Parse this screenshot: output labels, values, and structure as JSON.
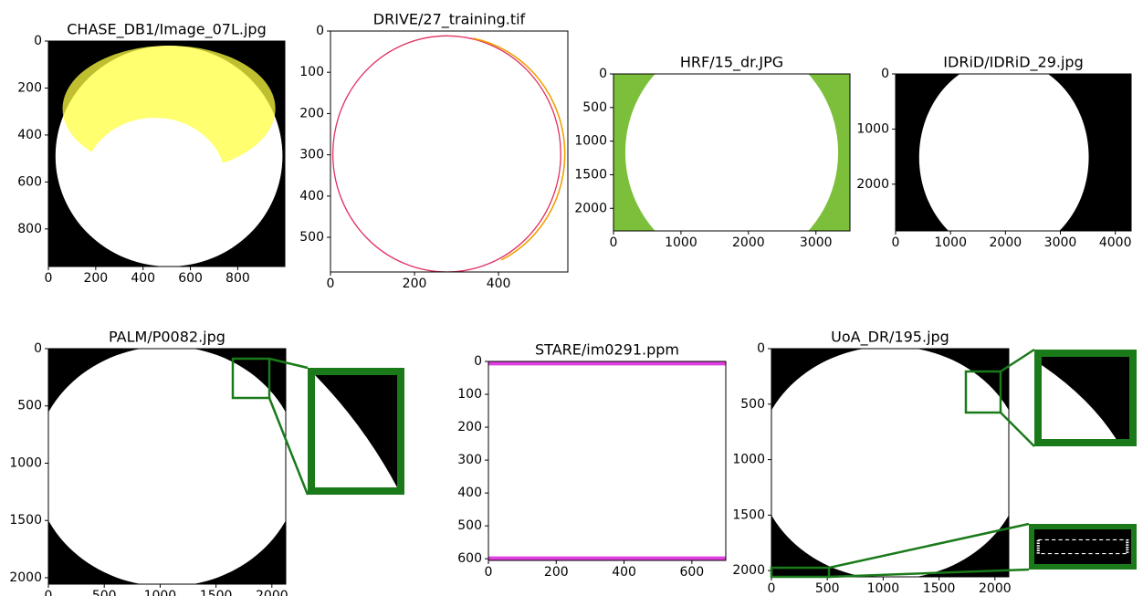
{
  "chart_data": [
    {
      "type": "image",
      "title": "CHASE_DB1/Image_07L.jpg",
      "xlim": [
        0,
        999
      ],
      "ylim": [
        960,
        0
      ],
      "xticks": [
        0,
        200,
        400,
        600,
        800
      ],
      "yticks": [
        0,
        200,
        400,
        600,
        800
      ]
    },
    {
      "type": "image",
      "title": "DRIVE/27_training.tif",
      "xlim": [
        0,
        565
      ],
      "ylim": [
        584,
        0
      ],
      "xticks": [
        0,
        200,
        400
      ],
      "yticks": [
        0,
        100,
        200,
        300,
        400,
        500
      ]
    },
    {
      "type": "image",
      "title": "HRF/15_dr.JPG",
      "xlim": [
        0,
        3504
      ],
      "ylim": [
        2336,
        0
      ],
      "xticks": [
        0,
        1000,
        2000,
        3000
      ],
      "yticks": [
        0,
        500,
        1000,
        1500,
        2000
      ]
    },
    {
      "type": "image",
      "title": "IDRiD/IDRiD_29.jpg",
      "xlim": [
        0,
        4288
      ],
      "ylim": [
        2848,
        0
      ],
      "xticks": [
        0,
        1000,
        2000,
        3000,
        4000
      ],
      "yticks": [
        0,
        1000,
        2000
      ]
    },
    {
      "type": "image",
      "title": "PALM/P0082.jpg",
      "xlim": [
        0,
        2124
      ],
      "ylim": [
        2056,
        0
      ],
      "xticks": [
        0,
        500,
        1000,
        1500,
        2000
      ],
      "yticks": [
        0,
        500,
        1000,
        1500,
        2000
      ]
    },
    {
      "type": "image",
      "title": "STARE/im0291.ppm",
      "xlim": [
        0,
        700
      ],
      "ylim": [
        605,
        0
      ],
      "xticks": [
        0,
        200,
        400,
        600
      ],
      "yticks": [
        0,
        100,
        200,
        300,
        400,
        500,
        600
      ]
    },
    {
      "type": "image",
      "title": "UoA_DR/195.jpg",
      "xlim": [
        0,
        2124
      ],
      "ylim": [
        2056,
        0
      ],
      "xticks": [
        0,
        500,
        1000,
        1500,
        2000
      ],
      "yticks": [
        0,
        500,
        1000,
        1500,
        2000
      ]
    }
  ]
}
